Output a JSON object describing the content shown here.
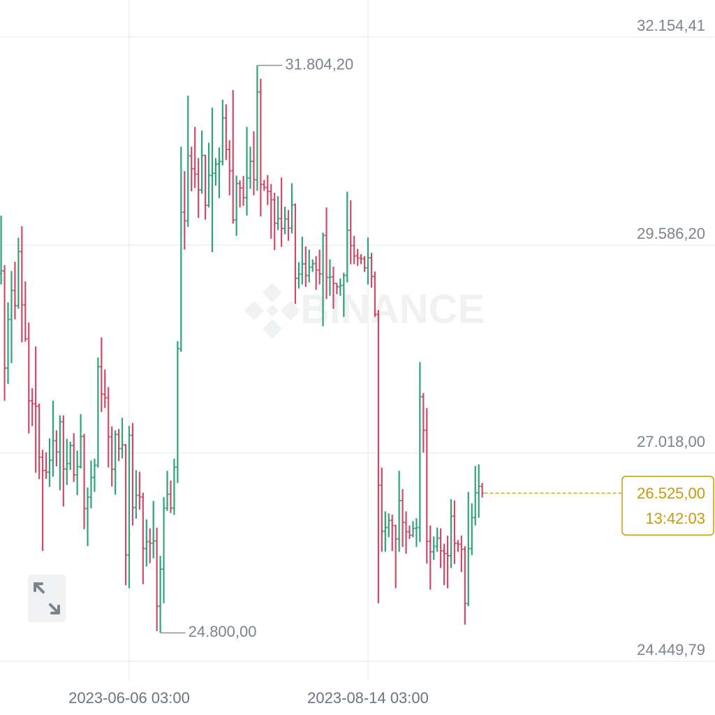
{
  "chart_data": {
    "type": "ohlc",
    "watermark": "BINANCE",
    "up_color": "#2fa27c",
    "down_color": "#cf4a66",
    "ylim": [
      24294.7,
      32611.2
    ],
    "yticks": [
      {
        "value": 32154.41,
        "label": "32.154,41"
      },
      {
        "value": 29586.2,
        "label": "29.586,20"
      },
      {
        "value": 27018.0,
        "label": "27.018,00"
      },
      {
        "value": 24449.79,
        "label": "24.449,79"
      }
    ],
    "xticks": [
      "2023-06-06 03:00",
      "2023-08-14 03:00"
    ],
    "grid": true,
    "high_marker": {
      "x": "2023-07-13 03:00",
      "value": 31804.2,
      "label": "31.804,20"
    },
    "low_marker": {
      "x": "2023-06-15 03:00",
      "value": 24800,
      "label": "24.800,00"
    },
    "last_price": {
      "value": 26525,
      "label": "26.525,00",
      "countdown": "13:42:03",
      "color": "#c99a06"
    },
    "x": [
      "2023-04-30 03:00",
      "2023-05-01 03:00",
      "2023-05-02 03:00",
      "2023-05-03 03:00",
      "2023-05-04 03:00",
      "2023-05-05 03:00",
      "2023-05-06 03:00",
      "2023-05-07 03:00",
      "2023-05-08 03:00",
      "2023-05-09 03:00",
      "2023-05-10 03:00",
      "2023-05-11 03:00",
      "2023-05-12 03:00",
      "2023-05-13 03:00",
      "2023-05-14 03:00",
      "2023-05-15 03:00",
      "2023-05-16 03:00",
      "2023-05-17 03:00",
      "2023-05-18 03:00",
      "2023-05-19 03:00",
      "2023-05-20 03:00",
      "2023-05-21 03:00",
      "2023-05-22 03:00",
      "2023-05-23 03:00",
      "2023-05-24 03:00",
      "2023-05-25 03:00",
      "2023-05-26 03:00",
      "2023-05-27 03:00",
      "2023-05-28 03:00",
      "2023-05-29 03:00",
      "2023-05-30 03:00",
      "2023-05-31 03:00",
      "2023-06-01 03:00",
      "2023-06-02 03:00",
      "2023-06-03 03:00",
      "2023-06-04 03:00",
      "2023-06-05 03:00",
      "2023-06-06 03:00",
      "2023-06-07 03:00",
      "2023-06-08 03:00",
      "2023-06-09 03:00",
      "2023-06-10 03:00",
      "2023-06-11 03:00",
      "2023-06-12 03:00",
      "2023-06-13 03:00",
      "2023-06-14 03:00",
      "2023-06-15 03:00",
      "2023-06-16 03:00",
      "2023-06-17 03:00",
      "2023-06-18 03:00",
      "2023-06-19 03:00",
      "2023-06-20 03:00",
      "2023-06-21 03:00",
      "2023-06-22 03:00",
      "2023-06-23 03:00",
      "2023-06-24 03:00",
      "2023-06-25 03:00",
      "2023-06-26 03:00",
      "2023-06-27 03:00",
      "2023-06-28 03:00",
      "2023-06-29 03:00",
      "2023-06-30 03:00",
      "2023-07-01 03:00",
      "2023-07-02 03:00",
      "2023-07-03 03:00",
      "2023-07-04 03:00",
      "2023-07-05 03:00",
      "2023-07-06 03:00",
      "2023-07-07 03:00",
      "2023-07-08 03:00",
      "2023-07-09 03:00",
      "2023-07-10 03:00",
      "2023-07-11 03:00",
      "2023-07-12 03:00",
      "2023-07-13 03:00",
      "2023-07-14 03:00",
      "2023-07-15 03:00",
      "2023-07-16 03:00",
      "2023-07-17 03:00",
      "2023-07-18 03:00",
      "2023-07-19 03:00",
      "2023-07-20 03:00",
      "2023-07-21 03:00",
      "2023-07-22 03:00",
      "2023-07-23 03:00",
      "2023-07-24 03:00",
      "2023-07-25 03:00",
      "2023-07-26 03:00",
      "2023-07-27 03:00",
      "2023-07-28 03:00",
      "2023-07-29 03:00",
      "2023-07-30 03:00",
      "2023-07-31 03:00",
      "2023-08-01 03:00",
      "2023-08-02 03:00",
      "2023-08-03 03:00",
      "2023-08-04 03:00",
      "2023-08-05 03:00",
      "2023-08-06 03:00",
      "2023-08-07 03:00",
      "2023-08-08 03:00",
      "2023-08-09 03:00",
      "2023-08-10 03:00",
      "2023-08-11 03:00",
      "2023-08-12 03:00",
      "2023-08-13 03:00",
      "2023-08-14 03:00",
      "2023-08-15 03:00",
      "2023-08-16 03:00",
      "2023-08-17 03:00",
      "2023-08-18 03:00",
      "2023-08-19 03:00",
      "2023-08-20 03:00",
      "2023-08-21 03:00",
      "2023-08-22 03:00",
      "2023-08-23 03:00",
      "2023-08-24 03:00",
      "2023-08-25 03:00",
      "2023-08-26 03:00",
      "2023-08-27 03:00",
      "2023-08-28 03:00",
      "2023-08-29 03:00",
      "2023-08-30 03:00",
      "2023-08-31 03:00",
      "2023-09-01 03:00",
      "2023-09-02 03:00",
      "2023-09-03 03:00",
      "2023-09-04 03:00",
      "2023-09-05 03:00",
      "2023-09-06 03:00",
      "2023-09-07 03:00",
      "2023-09-08 03:00",
      "2023-09-09 03:00",
      "2023-09-10 03:00",
      "2023-09-11 03:00",
      "2023-09-12 03:00",
      "2023-09-13 03:00",
      "2023-09-14 03:00",
      "2023-09-15 03:00",
      "2023-09-16 03:00"
    ],
    "ohlc": [
      [
        29233,
        29950,
        29100,
        29268
      ],
      [
        29268,
        29340,
        27666,
        28068
      ],
      [
        28068,
        28880,
        27872,
        28669
      ],
      [
        28669,
        29266,
        28130,
        29026
      ],
      [
        29026,
        29379,
        28670,
        28838
      ],
      [
        28838,
        29677,
        28800,
        29506
      ],
      [
        29506,
        29820,
        28385,
        28848
      ],
      [
        28848,
        29138,
        28395,
        28430
      ],
      [
        28430,
        28631,
        27262,
        27664
      ],
      [
        27664,
        27820,
        27353,
        27628
      ],
      [
        27628,
        28335,
        26776,
        27598
      ],
      [
        27598,
        27630,
        26698,
        26969
      ],
      [
        26969,
        27060,
        25811,
        26805
      ],
      [
        26805,
        27030,
        26700,
        26784
      ],
      [
        26784,
        27200,
        26601,
        26930
      ],
      [
        26930,
        27665,
        26727,
        27171
      ],
      [
        27171,
        27299,
        26855,
        27033
      ],
      [
        27033,
        27485,
        26560,
        27405
      ],
      [
        27405,
        27485,
        26360,
        26822
      ],
      [
        26822,
        27196,
        26625,
        26890
      ],
      [
        26890,
        27160,
        26811,
        27113
      ],
      [
        27113,
        27265,
        26663,
        26750
      ],
      [
        26750,
        27050,
        26500,
        26851
      ],
      [
        26851,
        27500,
        26829,
        27225
      ],
      [
        27225,
        27257,
        26080,
        26334
      ],
      [
        26334,
        26595,
        25871,
        26475
      ],
      [
        26475,
        26929,
        26337,
        26719
      ],
      [
        26719,
        26950,
        26540,
        26868
      ],
      [
        26868,
        28200,
        26840,
        28085
      ],
      [
        28085,
        28447,
        27525,
        27745
      ],
      [
        27745,
        28050,
        27575,
        27702
      ],
      [
        27702,
        27835,
        26840,
        27219
      ],
      [
        27219,
        27350,
        26605,
        26819
      ],
      [
        26819,
        27300,
        26505,
        27249
      ],
      [
        27249,
        27317,
        26920,
        27075
      ],
      [
        27075,
        27455,
        26952,
        27119
      ],
      [
        27119,
        27132,
        25388,
        25760
      ],
      [
        25760,
        27355,
        25350,
        27238
      ],
      [
        27238,
        27391,
        26125,
        26346
      ],
      [
        26346,
        26808,
        26210,
        26498
      ],
      [
        26498,
        26789,
        26320,
        26477
      ],
      [
        26477,
        26530,
        25400,
        25841
      ],
      [
        25841,
        26200,
        25620,
        25925
      ],
      [
        25925,
        26090,
        25660,
        25905
      ],
      [
        25905,
        26430,
        25720,
        25934
      ],
      [
        25934,
        26098,
        24820,
        25129
      ],
      [
        25129,
        25750,
        24800,
        25587
      ],
      [
        25587,
        26475,
        25165,
        26340
      ],
      [
        26340,
        26800,
        26305,
        26512
      ],
      [
        26512,
        26680,
        26280,
        26340
      ],
      [
        26340,
        26950,
        26255,
        26845
      ],
      [
        26845,
        28400,
        26650,
        28307
      ],
      [
        28307,
        30800,
        28270,
        29993
      ],
      [
        29993,
        30500,
        29530,
        29885
      ],
      [
        29885,
        31430,
        29810,
        30688
      ],
      [
        30688,
        30800,
        30250,
        30528
      ],
      [
        30528,
        31046,
        30290,
        30462
      ],
      [
        30462,
        30660,
        29920,
        30267
      ],
      [
        30267,
        31000,
        30220,
        30693
      ],
      [
        30693,
        30700,
        29900,
        30077
      ],
      [
        30077,
        30850,
        30050,
        30446
      ],
      [
        30446,
        31282,
        29500,
        30472
      ],
      [
        30472,
        30660,
        30320,
        30586
      ],
      [
        30586,
        30792,
        30165,
        30617
      ],
      [
        30617,
        31380,
        30570,
        31156
      ],
      [
        31156,
        31325,
        30636,
        30767
      ],
      [
        30767,
        30880,
        30200,
        30504
      ],
      [
        30504,
        31500,
        29850,
        29895
      ],
      [
        29895,
        30445,
        29700,
        30346
      ],
      [
        30346,
        30385,
        30050,
        30292
      ],
      [
        30292,
        30440,
        30070,
        30171
      ],
      [
        30171,
        31045,
        29950,
        30414
      ],
      [
        30414,
        30800,
        30280,
        30620
      ],
      [
        30620,
        30990,
        30200,
        30392
      ],
      [
        30392,
        31804.2,
        30255,
        31476
      ],
      [
        31476,
        31640,
        29940,
        30335
      ],
      [
        30335,
        30390,
        30255,
        30297
      ],
      [
        30297,
        30450,
        30080,
        30249
      ],
      [
        30249,
        30340,
        29665,
        30145
      ],
      [
        30145,
        30233,
        29525,
        29856
      ],
      [
        29856,
        30190,
        29770,
        29913
      ],
      [
        29913,
        30420,
        29565,
        29792
      ],
      [
        29792,
        30060,
        29720,
        29908
      ],
      [
        29908,
        30020,
        29640,
        29796
      ],
      [
        29796,
        30350,
        29730,
        30083
      ],
      [
        30083,
        30100,
        28860,
        29176
      ],
      [
        29176,
        29375,
        29050,
        29228
      ],
      [
        29228,
        29690,
        29100,
        29354
      ],
      [
        29354,
        29570,
        29070,
        29210
      ],
      [
        29210,
        29530,
        29125,
        29314
      ],
      [
        29314,
        29410,
        29255,
        29357
      ],
      [
        29357,
        29450,
        29035,
        29278
      ],
      [
        29278,
        29530,
        29100,
        29230
      ],
      [
        29230,
        29740,
        28585,
        29705
      ],
      [
        29705,
        30050,
        28920,
        29186
      ],
      [
        29186,
        29410,
        28960,
        29193
      ],
      [
        29193,
        29320,
        28800,
        29114
      ],
      [
        29114,
        29115,
        28980,
        29072
      ],
      [
        29072,
        29175,
        28960,
        29088
      ],
      [
        29088,
        29245,
        28700,
        29211
      ],
      [
        29211,
        30245,
        29125,
        29770
      ],
      [
        29770,
        30140,
        29350,
        29581
      ],
      [
        29581,
        29700,
        29350,
        29452
      ],
      [
        29452,
        29540,
        29330,
        29425
      ],
      [
        29425,
        29475,
        29350,
        29418
      ],
      [
        29418,
        29450,
        29255,
        29305
      ],
      [
        29305,
        29680,
        29100,
        29430
      ],
      [
        29430,
        29490,
        29060,
        29200
      ],
      [
        29200,
        29260,
        28700,
        28730
      ],
      [
        28730,
        28785,
        25166,
        26623
      ],
      [
        26623,
        26840,
        25800,
        26054
      ],
      [
        26054,
        26300,
        25800,
        26100
      ],
      [
        26100,
        26275,
        25980,
        26189
      ],
      [
        26189,
        26260,
        25810,
        26125
      ],
      [
        26125,
        26135,
        25350,
        25960
      ],
      [
        25960,
        26800,
        25800,
        26432
      ],
      [
        26432,
        26575,
        25860,
        26163
      ],
      [
        26163,
        26300,
        25777,
        26048
      ],
      [
        26048,
        26125,
        25960,
        26004
      ],
      [
        26004,
        26180,
        25980,
        26090
      ],
      [
        26090,
        26215,
        25860,
        26100
      ],
      [
        26100,
        28142,
        25920,
        27715
      ],
      [
        27715,
        27760,
        27025,
        27300
      ],
      [
        27300,
        27575,
        25655,
        25930
      ],
      [
        25930,
        26125,
        25333,
        25800
      ],
      [
        25800,
        25990,
        25700,
        25868
      ],
      [
        25868,
        26100,
        25800,
        25969
      ],
      [
        25969,
        26090,
        25600,
        25812
      ],
      [
        25812,
        25900,
        25390,
        25779
      ],
      [
        25779,
        26000,
        25350,
        25753
      ],
      [
        25753,
        26450,
        25600,
        26240
      ],
      [
        26240,
        26435,
        25650,
        25905
      ],
      [
        25905,
        25945,
        25800,
        25895
      ],
      [
        25895,
        26000,
        25550,
        25832
      ],
      [
        25832,
        25870,
        24901,
        25162
      ],
      [
        25162,
        26540,
        25130,
        25840
      ],
      [
        25840,
        26400,
        25760,
        26223
      ],
      [
        26223,
        26860,
        26125,
        26529
      ],
      [
        26529,
        26880,
        26220,
        26608
      ],
      [
        26608,
        26650,
        26470,
        26525
      ]
    ]
  }
}
